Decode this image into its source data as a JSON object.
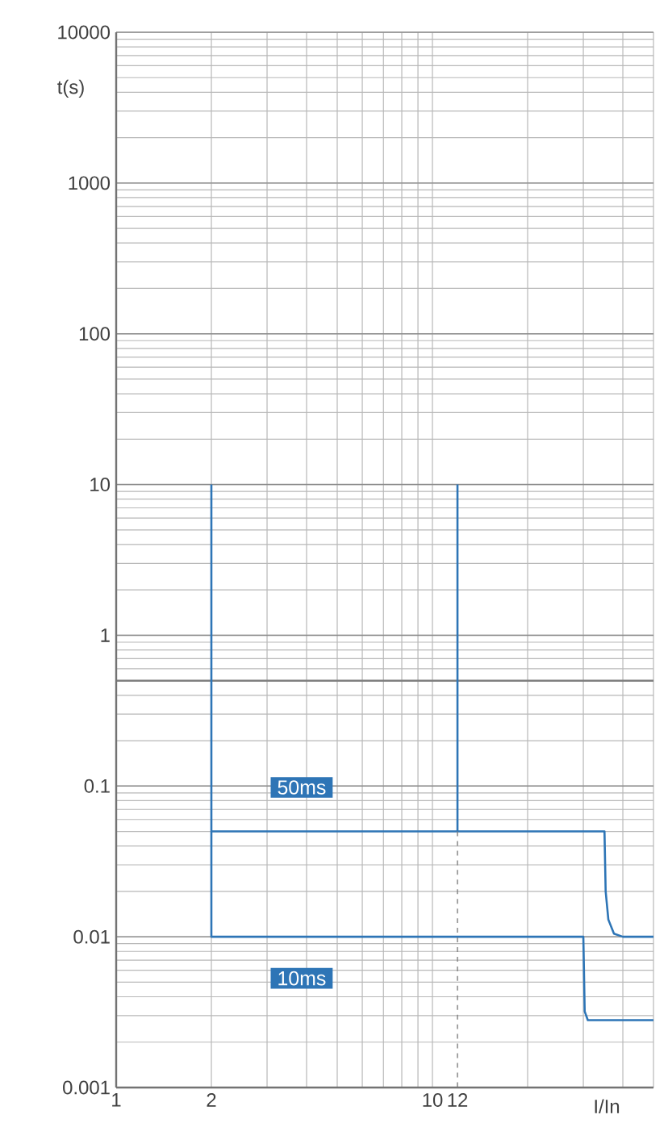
{
  "chart_data": {
    "type": "line",
    "ylabel": "t(s)",
    "xlabel": "I/In",
    "log": "xy",
    "grid": true,
    "legend": false,
    "xlim": [
      1,
      50
    ],
    "ylim": [
      0.001,
      10000
    ],
    "xticks": [
      1,
      2,
      10,
      12
    ],
    "yticks": [
      0.001,
      0.01,
      0.1,
      1,
      10,
      100,
      1000,
      10000
    ],
    "ref_lines": [
      {
        "axis": "y",
        "value": 0.5,
        "color": "#808080"
      }
    ],
    "series": [
      {
        "name": "10ms",
        "color": "#2e75b6",
        "x": [
          2,
          2,
          30,
          30.3,
          31,
          50
        ],
        "values": [
          10,
          0.01,
          0.01,
          0.0032,
          0.0028,
          0.0028
        ]
      },
      {
        "name": "50ms",
        "color": "#2e75b6",
        "x": [
          2,
          35,
          35.3,
          36,
          37.5,
          40,
          50
        ],
        "values": [
          0.05,
          0.05,
          0.02,
          0.013,
          0.0105,
          0.01,
          0.01
        ]
      },
      {
        "color": "#2e75b6",
        "x": [
          12,
          12
        ],
        "values": [
          10,
          0.05
        ]
      },
      {
        "color": "#7f7f7f",
        "line_style": "dashed",
        "x": [
          12,
          12
        ],
        "values": [
          0.05,
          0.001
        ]
      }
    ]
  }
}
